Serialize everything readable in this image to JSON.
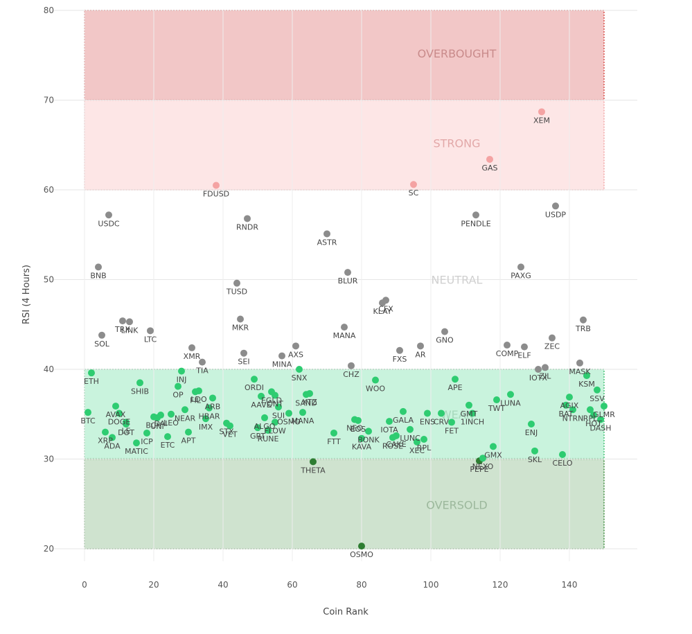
{
  "chart_data": {
    "type": "scatter",
    "xlabel": "Coin Rank",
    "ylabel": "RSI (4 Hours)",
    "xlim": [
      -2,
      152
    ],
    "ylim": [
      18,
      81
    ],
    "x_ticks": [
      0,
      20,
      40,
      60,
      80,
      100,
      120,
      140
    ],
    "y_ticks": [
      20,
      30,
      40,
      50,
      60,
      70,
      80
    ],
    "grid": true,
    "zones": [
      {
        "label": "OVERBOUGHT",
        "from": 70,
        "to": 80,
        "fill": "#f2c7c7",
        "border": "#d9534f",
        "text_color": "#c98b8b",
        "label_y": 75.2
      },
      {
        "label": "STRONG",
        "from": 60,
        "to": 70,
        "fill": "#fde6e6",
        "border": "#f2a6a6",
        "text_color": "#e2a8a8",
        "label_y": 65.2
      },
      {
        "label": "NEUTRAL",
        "from": null,
        "to": null,
        "fill": "none",
        "border": "none",
        "text_color": "#d0d0d0",
        "label_y": 50
      },
      {
        "label": "WEAK",
        "from": 30,
        "to": 40,
        "fill": "#c9f3dd",
        "border": "#4cc27a",
        "text_color": "#a6d8bc",
        "label_y": 35
      },
      {
        "label": "OVERSOLD",
        "from": 20,
        "to": 30,
        "fill": "#cfe3cf",
        "border": "#3c8a3c",
        "text_color": "#9cb89c",
        "label_y": 24.9
      }
    ],
    "zone_colors": {
      "strong": "#f4a3a3",
      "neutral": "#8c8c8c",
      "weak": "#2ecc71",
      "oversold": "#2e7d32"
    },
    "points": [
      {
        "label": "BTC",
        "x": 1,
        "y": 35.2,
        "zone": "weak"
      },
      {
        "label": "ETH",
        "x": 2,
        "y": 39.6,
        "zone": "weak"
      },
      {
        "label": "BNB",
        "x": 4,
        "y": 51.4,
        "zone": "neutral"
      },
      {
        "label": "SOL",
        "x": 5,
        "y": 43.8,
        "zone": "neutral"
      },
      {
        "label": "XRP",
        "x": 6,
        "y": 33.0,
        "zone": "weak"
      },
      {
        "label": "USDC",
        "x": 7,
        "y": 57.2,
        "zone": "neutral"
      },
      {
        "label": "ADA",
        "x": 8,
        "y": 32.4,
        "zone": "weak"
      },
      {
        "label": "AVAX",
        "x": 9,
        "y": 35.9,
        "zone": "weak"
      },
      {
        "label": "DOGE",
        "x": 10,
        "y": 35.1,
        "zone": "weak"
      },
      {
        "label": "TRX",
        "x": 11,
        "y": 45.4,
        "zone": "neutral"
      },
      {
        "label": "LE",
        "x": 12,
        "y": 34.1,
        "zone": "weak"
      },
      {
        "label": "LINK",
        "x": 13,
        "y": 45.3,
        "zone": "neutral"
      },
      {
        "label": "DOT",
        "x": 12,
        "y": 33.9,
        "zone": "weak"
      },
      {
        "label": "SHIB",
        "x": 16,
        "y": 38.5,
        "zone": "weak"
      },
      {
        "label": "MATIC",
        "x": 15,
        "y": 31.8,
        "zone": "weak"
      },
      {
        "label": "ICP",
        "x": 18,
        "y": 32.9,
        "zone": "weak"
      },
      {
        "label": "LTC",
        "x": 19,
        "y": 44.3,
        "zone": "neutral"
      },
      {
        "label": "BCH",
        "x": 20,
        "y": 34.7,
        "zone": "weak"
      },
      {
        "label": "UNI",
        "x": 21,
        "y": 34.6,
        "zone": "weak"
      },
      {
        "label": "DAI",
        "x": 22,
        "y": 34.9,
        "zone": "weak"
      },
      {
        "label": "ETC",
        "x": 24,
        "y": 32.5,
        "zone": "weak"
      },
      {
        "label": "LEO",
        "x": 25,
        "y": 35.0,
        "zone": "weak"
      },
      {
        "label": "INJ",
        "x": 28,
        "y": 39.8,
        "zone": "weak"
      },
      {
        "label": "OP",
        "x": 27,
        "y": 38.1,
        "zone": "weak"
      },
      {
        "label": "NEAR",
        "x": 29,
        "y": 35.5,
        "zone": "weak"
      },
      {
        "label": "APT",
        "x": 30,
        "y": 33.0,
        "zone": "weak"
      },
      {
        "label": "XMR",
        "x": 31,
        "y": 42.4,
        "zone": "neutral"
      },
      {
        "label": "FIL",
        "x": 32,
        "y": 37.5,
        "zone": "weak"
      },
      {
        "label": "LDO",
        "x": 33,
        "y": 37.6,
        "zone": "weak"
      },
      {
        "label": "TIA",
        "x": 34,
        "y": 40.8,
        "zone": "neutral"
      },
      {
        "label": "IMX",
        "x": 35,
        "y": 34.5,
        "zone": "weak"
      },
      {
        "label": "HBAR",
        "x": 36,
        "y": 35.7,
        "zone": "weak"
      },
      {
        "label": "ARB",
        "x": 37,
        "y": 36.8,
        "zone": "weak"
      },
      {
        "label": "STX",
        "x": 41,
        "y": 34.0,
        "zone": "weak"
      },
      {
        "label": "VET",
        "x": 42,
        "y": 33.7,
        "zone": "weak"
      },
      {
        "label": "MKR",
        "x": 45,
        "y": 45.6,
        "zone": "neutral"
      },
      {
        "label": "TUSD",
        "x": 44,
        "y": 49.6,
        "zone": "neutral"
      },
      {
        "label": "SEI",
        "x": 46,
        "y": 41.8,
        "zone": "neutral"
      },
      {
        "label": "RNDR",
        "x": 47,
        "y": 56.8,
        "zone": "neutral"
      },
      {
        "label": "FDUSD",
        "x": 38,
        "y": 60.5,
        "zone": "strong"
      },
      {
        "label": "GRT",
        "x": 50,
        "y": 33.5,
        "zone": "weak"
      },
      {
        "label": "ORDI",
        "x": 49,
        "y": 38.9,
        "zone": "weak"
      },
      {
        "label": "ALGO",
        "x": 52,
        "y": 34.6,
        "zone": "weak"
      },
      {
        "label": "RUNE",
        "x": 53,
        "y": 33.2,
        "zone": "weak"
      },
      {
        "label": "AAVE",
        "x": 51,
        "y": 37.0,
        "zone": "weak"
      },
      {
        "label": "QNT",
        "x": 55,
        "y": 37.1,
        "zone": "weak"
      },
      {
        "label": "EGLD",
        "x": 54,
        "y": 37.5,
        "zone": "weak"
      },
      {
        "label": "FLOW",
        "x": 55,
        "y": 34.1,
        "zone": "weak"
      },
      {
        "label": "SUI",
        "x": 56,
        "y": 35.8,
        "zone": "weak"
      },
      {
        "label": "MINA",
        "x": 57,
        "y": 41.5,
        "zone": "neutral"
      },
      {
        "label": "AXS",
        "x": 61,
        "y": 42.6,
        "zone": "neutral"
      },
      {
        "label": "SNX",
        "x": 62,
        "y": 40.0,
        "zone": "weak"
      },
      {
        "label": "SAND",
        "x": 64,
        "y": 37.2,
        "zone": "weak"
      },
      {
        "label": "XTZ",
        "x": 65,
        "y": 37.3,
        "zone": "weak"
      },
      {
        "label": "MANA",
        "x": 63,
        "y": 35.2,
        "zone": "weak"
      },
      {
        "label": "OSMO",
        "x": 59,
        "y": 35.1,
        "zone": "weak"
      },
      {
        "label": "ASTR",
        "x": 70,
        "y": 55.1,
        "zone": "neutral"
      },
      {
        "label": "THETA",
        "x": 66,
        "y": 29.7,
        "zone": "oversold"
      },
      {
        "label": "MANA",
        "x": 75,
        "y": 44.7,
        "zone": "neutral"
      },
      {
        "label": "BLUR",
        "x": 76,
        "y": 50.8,
        "zone": "neutral"
      },
      {
        "label": "CHZ",
        "x": 77,
        "y": 40.4,
        "zone": "neutral"
      },
      {
        "label": "FTT",
        "x": 72,
        "y": 32.9,
        "zone": "weak"
      },
      {
        "label": "NEO",
        "x": 78,
        "y": 34.4,
        "zone": "weak"
      },
      {
        "label": "EOS",
        "x": 79,
        "y": 34.3,
        "zone": "weak"
      },
      {
        "label": "KAVA",
        "x": 80,
        "y": 32.3,
        "zone": "weak"
      },
      {
        "label": "BONK",
        "x": 82,
        "y": 33.1,
        "zone": "weak"
      },
      {
        "label": "WOO",
        "x": 84,
        "y": 38.8,
        "zone": "weak"
      },
      {
        "label": "KLAY",
        "x": 86,
        "y": 47.4,
        "zone": "neutral"
      },
      {
        "label": "CFX",
        "x": 87,
        "y": 47.7,
        "zone": "neutral"
      },
      {
        "label": "OSMO",
        "x": 80,
        "y": 20.3,
        "zone": "oversold"
      },
      {
        "label": "ROSE",
        "x": 89,
        "y": 32.4,
        "zone": "weak"
      },
      {
        "label": "IOTA",
        "x": 88,
        "y": 34.2,
        "zone": "weak"
      },
      {
        "label": "CAKE",
        "x": 90,
        "y": 32.6,
        "zone": "weak"
      },
      {
        "label": "GALA",
        "x": 92,
        "y": 35.3,
        "zone": "weak"
      },
      {
        "label": "FXS",
        "x": 91,
        "y": 42.1,
        "zone": "neutral"
      },
      {
        "label": "LUNC",
        "x": 94,
        "y": 33.3,
        "zone": "weak"
      },
      {
        "label": "XEC",
        "x": 96,
        "y": 31.9,
        "zone": "weak"
      },
      {
        "label": "SC",
        "x": 95,
        "y": 60.6,
        "zone": "strong"
      },
      {
        "label": "AR",
        "x": 97,
        "y": 42.6,
        "zone": "neutral"
      },
      {
        "label": "RPL",
        "x": 98,
        "y": 32.2,
        "zone": "weak"
      },
      {
        "label": "ENS",
        "x": 99,
        "y": 35.1,
        "zone": "weak"
      },
      {
        "label": "CRV",
        "x": 103,
        "y": 35.1,
        "zone": "weak"
      },
      {
        "label": "GNO",
        "x": 104,
        "y": 44.2,
        "zone": "neutral"
      },
      {
        "label": "FET",
        "x": 106,
        "y": 34.1,
        "zone": "weak"
      },
      {
        "label": "APE",
        "x": 107,
        "y": 38.9,
        "zone": "weak"
      },
      {
        "label": "GMT",
        "x": 111,
        "y": 36.0,
        "zone": "weak"
      },
      {
        "label": "1INCH",
        "x": 112,
        "y": 35.1,
        "zone": "weak"
      },
      {
        "label": "PENDLE",
        "x": 113,
        "y": 57.2,
        "zone": "neutral"
      },
      {
        "label": "GAS",
        "x": 117,
        "y": 63.4,
        "zone": "strong"
      },
      {
        "label": "PEPE",
        "x": 114,
        "y": 29.8,
        "zone": "oversold"
      },
      {
        "label": "NEXO",
        "x": 115,
        "y": 30.1,
        "zone": "weak"
      },
      {
        "label": "GMX",
        "x": 118,
        "y": 31.4,
        "zone": "weak"
      },
      {
        "label": "TWT",
        "x": 119,
        "y": 36.6,
        "zone": "weak"
      },
      {
        "label": "LUNA",
        "x": 123,
        "y": 37.2,
        "zone": "weak"
      },
      {
        "label": "COMP",
        "x": 122,
        "y": 42.7,
        "zone": "neutral"
      },
      {
        "label": "PAXG",
        "x": 126,
        "y": 51.4,
        "zone": "neutral"
      },
      {
        "label": "ELF",
        "x": 127,
        "y": 42.5,
        "zone": "neutral"
      },
      {
        "label": "ENJ",
        "x": 129,
        "y": 33.9,
        "zone": "weak"
      },
      {
        "label": "SKL",
        "x": 130,
        "y": 30.9,
        "zone": "weak"
      },
      {
        "label": "IOTX",
        "x": 131,
        "y": 40.0,
        "zone": "neutral"
      },
      {
        "label": "ZIL",
        "x": 133,
        "y": 40.2,
        "zone": "neutral"
      },
      {
        "label": "XEM",
        "x": 132,
        "y": 68.7,
        "zone": "strong"
      },
      {
        "label": "ZEC",
        "x": 135,
        "y": 43.5,
        "zone": "neutral"
      },
      {
        "label": "USDP",
        "x": 136,
        "y": 58.2,
        "zone": "neutral"
      },
      {
        "label": "CELO",
        "x": 138,
        "y": 30.5,
        "zone": "weak"
      },
      {
        "label": "MASK",
        "x": 143,
        "y": 40.7,
        "zone": "neutral"
      },
      {
        "label": "TRB",
        "x": 144,
        "y": 45.5,
        "zone": "neutral"
      },
      {
        "label": "AGIX",
        "x": 140,
        "y": 36.9,
        "zone": "weak"
      },
      {
        "label": "BAT",
        "x": 139,
        "y": 36.0,
        "zone": "weak"
      },
      {
        "label": "NTRN",
        "x": 141,
        "y": 35.5,
        "zone": "weak"
      },
      {
        "label": "KSM",
        "x": 145,
        "y": 39.3,
        "zone": "weak"
      },
      {
        "label": "SSV",
        "x": 148,
        "y": 37.7,
        "zone": "weak"
      },
      {
        "label": "RPL",
        "x": 146,
        "y": 35.5,
        "zone": "weak"
      },
      {
        "label": "GLMR",
        "x": 150,
        "y": 35.9,
        "zone": "weak"
      },
      {
        "label": "HOT",
        "x": 147,
        "y": 34.9,
        "zone": "weak"
      },
      {
        "label": "DASH",
        "x": 149,
        "y": 34.4,
        "zone": "weak"
      }
    ]
  }
}
